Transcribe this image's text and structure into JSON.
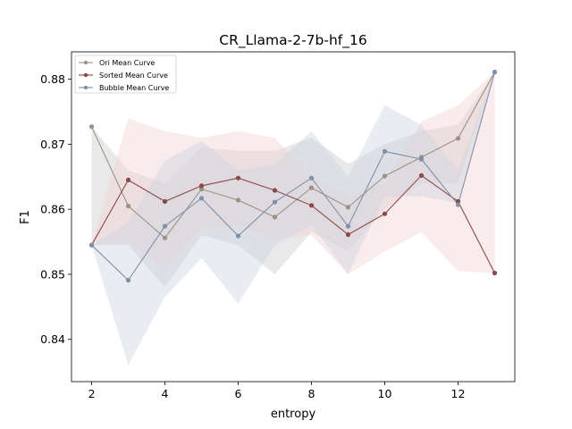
{
  "chart_data": {
    "type": "line",
    "title": "CR_Llama-2-7b-hf_16",
    "xlabel": "entropy",
    "ylabel": "F1",
    "xlim": [
      1.45,
      13.55
    ],
    "ylim": [
      0.8335,
      0.8842
    ],
    "xticks": [
      2,
      4,
      6,
      8,
      10,
      12
    ],
    "yticks": [
      0.84,
      0.85,
      0.86,
      0.87,
      0.88
    ],
    "ytick_labels": [
      "0.84",
      "0.85",
      "0.86",
      "0.87",
      "0.88"
    ],
    "grid": false,
    "legend_position": "top-left",
    "x": [
      2,
      3,
      4,
      5,
      6,
      7,
      8,
      9,
      10,
      11,
      12,
      13
    ],
    "series": [
      {
        "name": "Ori Mean Curve",
        "color": "#9b9283",
        "band_color": "#c8c8c8",
        "values": [
          0.8727,
          0.8605,
          0.8556,
          0.8631,
          0.8614,
          0.8588,
          0.8633,
          0.8603,
          0.8651,
          0.868,
          0.8709,
          0.8811
        ],
        "upper": [
          0.8727,
          0.866,
          0.864,
          0.8695,
          0.869,
          0.869,
          0.871,
          0.867,
          0.87,
          0.872,
          0.873,
          0.8811
        ],
        "lower": [
          0.8545,
          0.8545,
          0.848,
          0.856,
          0.8545,
          0.85,
          0.8565,
          0.8535,
          0.86,
          0.864,
          0.864,
          0.8811
        ]
      },
      {
        "name": "Sorted Mean Curve",
        "color": "#8c4848",
        "band_color": "#f2d0d0",
        "values": [
          0.8545,
          0.8645,
          0.8612,
          0.8636,
          0.8648,
          0.8629,
          0.8606,
          0.8561,
          0.8593,
          0.8652,
          0.8612,
          0.8502
        ],
        "upper": [
          0.8545,
          0.874,
          0.872,
          0.871,
          0.872,
          0.871,
          0.865,
          0.862,
          0.864,
          0.8735,
          0.876,
          0.8811
        ],
        "lower": [
          0.8545,
          0.855,
          0.851,
          0.857,
          0.8575,
          0.8555,
          0.856,
          0.85,
          0.8535,
          0.8565,
          0.8505,
          0.8502
        ]
      },
      {
        "name": "Bubble Mean Curve",
        "color": "#8090a8",
        "band_color": "#c9d2de",
        "values": [
          0.8545,
          0.8491,
          0.8574,
          0.8617,
          0.8559,
          0.8611,
          0.8648,
          0.8574,
          0.8689,
          0.8677,
          0.8607,
          0.8811
        ],
        "upper": [
          0.8545,
          0.858,
          0.8675,
          0.8705,
          0.866,
          0.867,
          0.872,
          0.865,
          0.876,
          0.873,
          0.866,
          0.8811
        ],
        "lower": [
          0.8545,
          0.836,
          0.8465,
          0.8525,
          0.8455,
          0.8545,
          0.8575,
          0.85,
          0.862,
          0.862,
          0.861,
          0.8811
        ]
      }
    ]
  }
}
